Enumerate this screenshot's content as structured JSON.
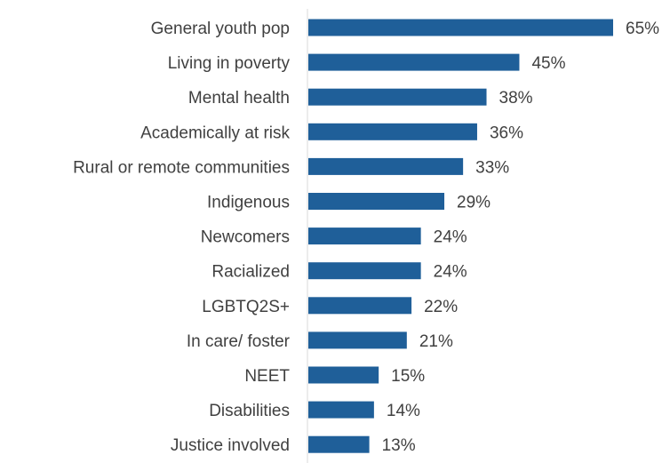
{
  "chart_data": {
    "type": "bar",
    "orientation": "horizontal",
    "categories": [
      "General youth pop",
      "Living in poverty",
      "Mental health",
      "Academically at risk",
      "Rural or remote communities",
      "Indigenous",
      "Newcomers",
      "Racialized",
      "LGBTQ2S+",
      "In care/ foster",
      "NEET",
      "Disabilities",
      "Justice involved"
    ],
    "values": [
      65,
      45,
      38,
      36,
      33,
      29,
      24,
      24,
      22,
      21,
      15,
      14,
      13
    ],
    "value_labels": [
      "65%",
      "45%",
      "38%",
      "36%",
      "33%",
      "29%",
      "24%",
      "24%",
      "22%",
      "21%",
      "15%",
      "14%",
      "13%"
    ],
    "xlim": [
      0,
      65
    ],
    "grid": false,
    "legend": "none",
    "bar_color": "#1F5F99",
    "axis_color": "#d9d9d9",
    "text_color": "#404040"
  }
}
